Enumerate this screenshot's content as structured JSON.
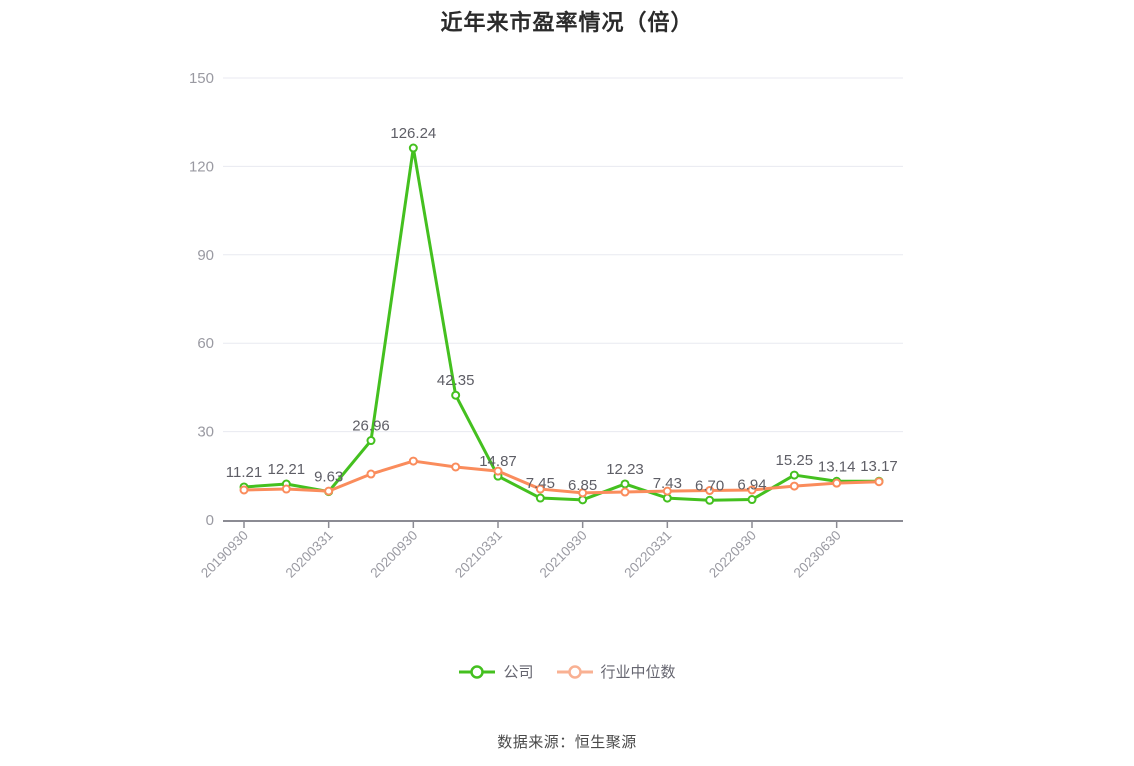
{
  "chart_data": {
    "type": "line",
    "title": "近年来市盈率情况（倍）",
    "source": "数据来源：恒生聚源",
    "ylim": [
      0,
      150
    ],
    "y_ticks": [
      0,
      30,
      60,
      90,
      120,
      150
    ],
    "grid": true,
    "legend_position": "bottom",
    "x_tick_labels": [
      "20190930",
      "20200331",
      "20200930",
      "20210331",
      "20210930",
      "20220331",
      "20220930",
      "20230630"
    ],
    "x_tick_point_indices": [
      0,
      2,
      4,
      6,
      8,
      10,
      12,
      14
    ],
    "series": [
      {
        "name": "公司",
        "color": "#44c01f",
        "values": [
          11.21,
          12.21,
          9.63,
          26.96,
          126.24,
          42.35,
          14.87,
          7.45,
          6.85,
          12.23,
          7.43,
          6.7,
          6.94,
          15.25,
          13.14,
          13.17
        ],
        "point_labels": [
          "11.21",
          "12.21",
          "9.63",
          "26.96",
          "126.24",
          "42.35",
          "14.87",
          "7.45",
          "6.85",
          "12.23",
          "7.43",
          "6.70",
          "6.94",
          "15.25",
          "13.14",
          "13.17"
        ]
      },
      {
        "name": "行业中位数",
        "color": "#fa8c5c",
        "values": [
          10.2,
          10.5,
          9.8,
          15.6,
          20.0,
          18.0,
          16.6,
          10.5,
          9.2,
          9.5,
          9.8,
          10.0,
          10.2,
          11.5,
          12.5,
          13.0
        ]
      }
    ],
    "legend_icon_colors": [
      "#44c01f",
      "#f9b193"
    ],
    "colors": {
      "grid_line": "#e8eaf0",
      "axis_line": "#8b8b93",
      "axis_label": "#9a9aa2",
      "data_label": "#5e5e66"
    }
  }
}
